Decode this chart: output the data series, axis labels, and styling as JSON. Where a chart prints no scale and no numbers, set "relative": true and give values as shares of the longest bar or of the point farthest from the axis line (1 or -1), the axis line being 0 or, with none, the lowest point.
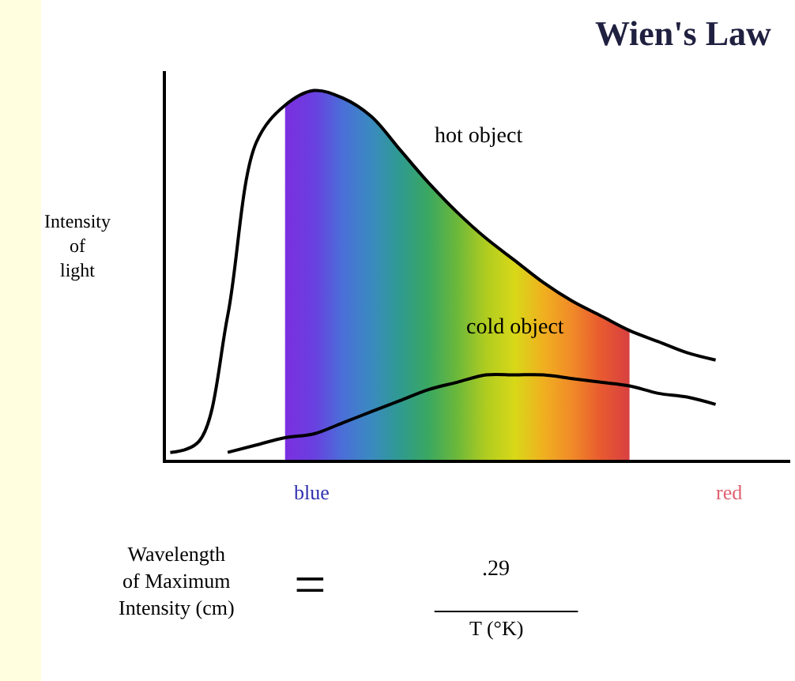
{
  "chart_data": {
    "type": "line",
    "title": "Wien's Law",
    "ylabel": "Intensity of light",
    "relative": true,
    "marker": "none",
    "line_style": "solid",
    "categories": [
      null,
      null,
      null,
      null,
      null,
      null,
      null,
      null,
      null,
      null,
      null,
      null,
      null,
      null,
      null,
      null,
      null,
      null,
      null,
      null
    ],
    "series": [
      {
        "type": "area",
        "color": "#7f2fd0",
        "colors": [
          null,
          null,
          null,
          null,
          "#7b2fe0",
          "#6a3fe0",
          "#4a6fd8",
          "#3a8ac0",
          "#2f9a90",
          "#3aa860",
          "#6cb83a",
          "#b0cc20",
          "#d8d818",
          "#f0b020",
          "#f08a28",
          "#e85a30",
          "#d84040",
          null,
          null,
          null
        ],
        "values": [
          null,
          null,
          null,
          null,
          0.96,
          1.0,
          0.98,
          0.93,
          0.84,
          0.75,
          0.67,
          0.6,
          0.54,
          0.48,
          0.43,
          0.39,
          0.35,
          null,
          null,
          null
        ]
      },
      {
        "color": "#000000",
        "values": [
          0.02,
          0.05,
          0.39,
          0.86,
          0.96,
          1.0,
          0.98,
          0.93,
          0.84,
          0.75,
          0.67,
          0.6,
          0.54,
          0.48,
          0.43,
          0.39,
          0.35,
          0.32,
          0.29,
          0.27
        ]
      },
      {
        "color": "#000000",
        "values": [
          null,
          null,
          0.02,
          0.04,
          0.06,
          0.07,
          0.1,
          0.13,
          0.16,
          0.19,
          0.21,
          0.23,
          0.23,
          0.23,
          0.22,
          0.21,
          0.2,
          0.18,
          0.17,
          0.15
        ]
      }
    ],
    "annotations": [
      "hot object",
      "cold object",
      "blue",
      "red",
      "Wavelength of Maximum Intensity (cm)",
      "=",
      ".29",
      "T (°K)"
    ]
  }
}
